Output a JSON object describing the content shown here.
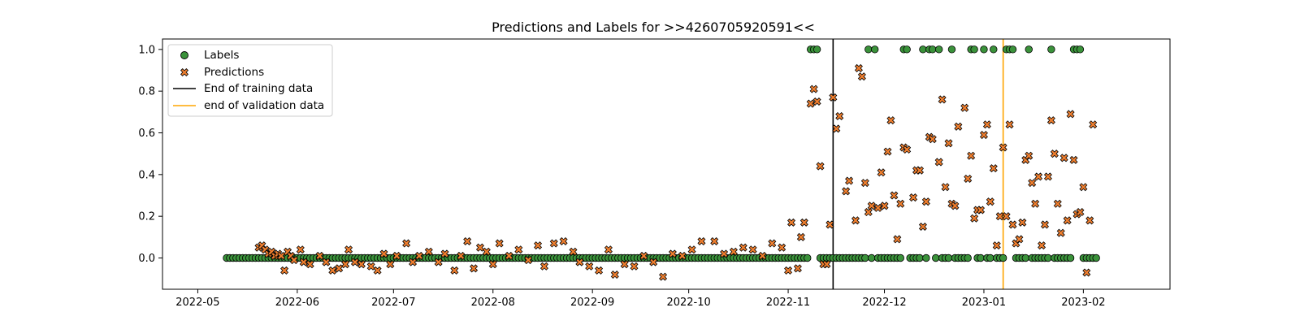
{
  "chart_data": {
    "type": "scatter",
    "title": "Predictions and Labels for >>4260705920591<<",
    "xlabel": "",
    "ylabel": "",
    "xlim": [
      "2022-04-20",
      "2023-02-28"
    ],
    "ylim": [
      -0.15,
      1.05
    ],
    "x_ticks": [
      "2022-05",
      "2022-06",
      "2022-07",
      "2022-08",
      "2022-09",
      "2022-10",
      "2022-11",
      "2022-12",
      "2023-01",
      "2023-02"
    ],
    "y_ticks": [
      "0.0",
      "0.2",
      "0.4",
      "0.6",
      "0.8",
      "1.0"
    ],
    "start_date": "2022-05-10",
    "end_date": "2023-02-05",
    "grid": false,
    "legend_position": "top-left",
    "legend": [
      "Labels",
      "Predictions",
      "End of training data",
      "end of validation data"
    ],
    "vlines": [
      {
        "name": "End of training data",
        "date": "2022-11-15",
        "color": "#000000"
      },
      {
        "name": "end of validation data",
        "date": "2023-01-07",
        "color": "#ffa500"
      }
    ],
    "colors": {
      "labels": "#3a923a",
      "predictions": "#f07f2f"
    },
    "label_ones": [
      "2022-11-08",
      "2022-11-09",
      "2022-11-10",
      "2022-11-26",
      "2022-11-28",
      "2022-12-07",
      "2022-12-08",
      "2022-12-13",
      "2022-12-15",
      "2022-12-16",
      "2022-12-18",
      "2022-12-22",
      "2022-12-28",
      "2022-12-29",
      "2023-01-01",
      "2023-01-04",
      "2023-01-08",
      "2023-01-09",
      "2023-01-10",
      "2023-01-15",
      "2023-01-22",
      "2023-01-29",
      "2023-01-30",
      "2023-01-31"
    ],
    "predictions": [
      [
        "2022-05-20",
        0.05
      ],
      [
        "2022-05-21",
        0.06
      ],
      [
        "2022-05-22",
        0.04
      ],
      [
        "2022-05-23",
        0.02
      ],
      [
        "2022-05-24",
        0.03
      ],
      [
        "2022-05-25",
        0.01
      ],
      [
        "2022-05-26",
        0.02
      ],
      [
        "2022-05-27",
        0.01
      ],
      [
        "2022-05-28",
        -0.06
      ],
      [
        "2022-05-29",
        0.03
      ],
      [
        "2022-05-30",
        0.01
      ],
      [
        "2022-05-31",
        -0.01
      ],
      [
        "2022-06-02",
        0.04
      ],
      [
        "2022-06-03",
        -0.02
      ],
      [
        "2022-06-05",
        -0.03
      ],
      [
        "2022-06-08",
        0.01
      ],
      [
        "2022-06-10",
        -0.02
      ],
      [
        "2022-06-12",
        -0.06
      ],
      [
        "2022-06-14",
        -0.05
      ],
      [
        "2022-06-16",
        -0.03
      ],
      [
        "2022-06-17",
        0.04
      ],
      [
        "2022-06-19",
        -0.02
      ],
      [
        "2022-06-21",
        -0.03
      ],
      [
        "2022-06-24",
        -0.04
      ],
      [
        "2022-06-26",
        -0.06
      ],
      [
        "2022-06-28",
        0.02
      ],
      [
        "2022-06-30",
        -0.03
      ],
      [
        "2022-07-02",
        0.01
      ],
      [
        "2022-07-05",
        0.07
      ],
      [
        "2022-07-07",
        -0.02
      ],
      [
        "2022-07-09",
        0.01
      ],
      [
        "2022-07-12",
        0.03
      ],
      [
        "2022-07-15",
        -0.02
      ],
      [
        "2022-07-17",
        0.02
      ],
      [
        "2022-07-20",
        -0.06
      ],
      [
        "2022-07-22",
        0.01
      ],
      [
        "2022-07-24",
        0.08
      ],
      [
        "2022-07-26",
        -0.05
      ],
      [
        "2022-07-28",
        0.05
      ],
      [
        "2022-07-30",
        0.03
      ],
      [
        "2022-08-01",
        -0.03
      ],
      [
        "2022-08-03",
        0.07
      ],
      [
        "2022-08-06",
        0.01
      ],
      [
        "2022-08-09",
        0.04
      ],
      [
        "2022-08-12",
        -0.01
      ],
      [
        "2022-08-15",
        0.06
      ],
      [
        "2022-08-17",
        -0.04
      ],
      [
        "2022-08-20",
        0.07
      ],
      [
        "2022-08-23",
        0.08
      ],
      [
        "2022-08-26",
        0.03
      ],
      [
        "2022-08-28",
        -0.02
      ],
      [
        "2022-08-31",
        -0.04
      ],
      [
        "2022-09-03",
        -0.06
      ],
      [
        "2022-09-06",
        0.04
      ],
      [
        "2022-09-08",
        -0.08
      ],
      [
        "2022-09-11",
        -0.03
      ],
      [
        "2022-09-14",
        -0.04
      ],
      [
        "2022-09-17",
        0.01
      ],
      [
        "2022-09-20",
        -0.02
      ],
      [
        "2022-09-23",
        -0.09
      ],
      [
        "2022-09-26",
        0.02
      ],
      [
        "2022-09-29",
        0.01
      ],
      [
        "2022-10-02",
        0.04
      ],
      [
        "2022-10-05",
        0.08
      ],
      [
        "2022-10-09",
        0.08
      ],
      [
        "2022-10-12",
        0.02
      ],
      [
        "2022-10-15",
        0.03
      ],
      [
        "2022-10-18",
        0.05
      ],
      [
        "2022-10-21",
        0.04
      ],
      [
        "2022-10-24",
        0.01
      ],
      [
        "2022-10-27",
        0.07
      ],
      [
        "2022-10-30",
        0.05
      ],
      [
        "2022-11-01",
        -0.06
      ],
      [
        "2022-11-02",
        0.17
      ],
      [
        "2022-11-04",
        -0.05
      ],
      [
        "2022-11-05",
        0.1
      ],
      [
        "2022-11-06",
        0.17
      ],
      [
        "2022-11-08",
        0.74
      ],
      [
        "2022-11-09",
        0.81
      ],
      [
        "2022-11-10",
        0.75
      ],
      [
        "2022-11-11",
        0.44
      ],
      [
        "2022-11-12",
        -0.03
      ],
      [
        "2022-11-13",
        -0.03
      ],
      [
        "2022-11-14",
        0.16
      ],
      [
        "2022-11-15",
        0.77
      ],
      [
        "2022-11-16",
        0.62
      ],
      [
        "2022-11-17",
        0.68
      ],
      [
        "2022-11-19",
        0.32
      ],
      [
        "2022-11-20",
        0.37
      ],
      [
        "2022-11-22",
        0.18
      ],
      [
        "2022-11-23",
        0.91
      ],
      [
        "2022-11-24",
        0.87
      ],
      [
        "2022-11-25",
        0.36
      ],
      [
        "2022-11-26",
        0.22
      ],
      [
        "2022-11-27",
        0.25
      ],
      [
        "2022-11-29",
        0.24
      ],
      [
        "2022-11-30",
        0.41
      ],
      [
        "2022-12-01",
        0.25
      ],
      [
        "2022-12-02",
        0.51
      ],
      [
        "2022-12-03",
        0.66
      ],
      [
        "2022-12-04",
        0.3
      ],
      [
        "2022-12-05",
        0.09
      ],
      [
        "2022-12-06",
        0.26
      ],
      [
        "2022-12-07",
        0.53
      ],
      [
        "2022-12-08",
        0.52
      ],
      [
        "2022-12-10",
        0.29
      ],
      [
        "2022-12-11",
        0.42
      ],
      [
        "2022-12-12",
        0.42
      ],
      [
        "2022-12-13",
        0.15
      ],
      [
        "2022-12-14",
        0.27
      ],
      [
        "2022-12-15",
        0.58
      ],
      [
        "2022-12-16",
        0.57
      ],
      [
        "2022-12-18",
        0.46
      ],
      [
        "2022-12-19",
        0.76
      ],
      [
        "2022-12-20",
        0.34
      ],
      [
        "2022-12-21",
        0.55
      ],
      [
        "2022-12-22",
        0.26
      ],
      [
        "2022-12-23",
        0.25
      ],
      [
        "2022-12-24",
        0.63
      ],
      [
        "2022-12-26",
        0.72
      ],
      [
        "2022-12-27",
        0.38
      ],
      [
        "2022-12-28",
        0.49
      ],
      [
        "2022-12-29",
        0.19
      ],
      [
        "2022-12-30",
        0.23
      ],
      [
        "2022-12-31",
        0.23
      ],
      [
        "2023-01-01",
        0.59
      ],
      [
        "2023-01-02",
        0.64
      ],
      [
        "2023-01-03",
        0.27
      ],
      [
        "2023-01-04",
        0.43
      ],
      [
        "2023-01-05",
        0.06
      ],
      [
        "2023-01-06",
        0.2
      ],
      [
        "2023-01-07",
        0.53
      ],
      [
        "2023-01-08",
        0.2
      ],
      [
        "2023-01-09",
        0.64
      ],
      [
        "2023-01-10",
        0.16
      ],
      [
        "2023-01-11",
        0.07
      ],
      [
        "2023-01-12",
        0.09
      ],
      [
        "2023-01-13",
        0.17
      ],
      [
        "2023-01-14",
        0.47
      ],
      [
        "2023-01-15",
        0.49
      ],
      [
        "2023-01-16",
        0.36
      ],
      [
        "2023-01-17",
        0.26
      ],
      [
        "2023-01-18",
        0.39
      ],
      [
        "2023-01-19",
        0.06
      ],
      [
        "2023-01-20",
        0.16
      ],
      [
        "2023-01-21",
        0.39
      ],
      [
        "2023-01-22",
        0.66
      ],
      [
        "2023-01-23",
        0.5
      ],
      [
        "2023-01-24",
        0.26
      ],
      [
        "2023-01-25",
        0.12
      ],
      [
        "2023-01-26",
        0.48
      ],
      [
        "2023-01-27",
        0.18
      ],
      [
        "2023-01-28",
        0.69
      ],
      [
        "2023-01-29",
        0.47
      ],
      [
        "2023-01-30",
        0.21
      ],
      [
        "2023-01-31",
        0.22
      ],
      [
        "2023-02-01",
        0.34
      ],
      [
        "2023-02-02",
        -0.07
      ],
      [
        "2023-02-03",
        0.18
      ],
      [
        "2023-02-04",
        0.64
      ]
    ]
  }
}
